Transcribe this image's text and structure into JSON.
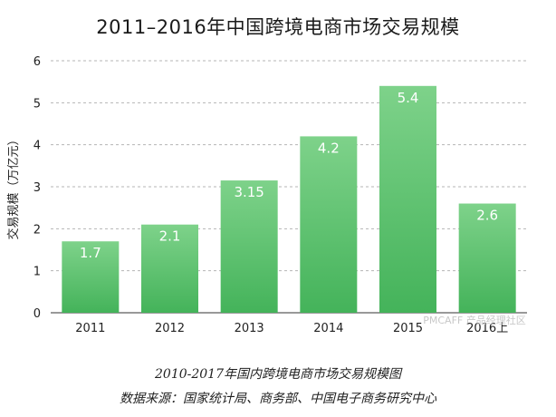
{
  "chart_data": {
    "type": "bar",
    "title": "2011–2016年中国跨境电商市场交易规模",
    "categories": [
      "2011",
      "2012",
      "2013",
      "2014",
      "2015",
      "2016上"
    ],
    "values": [
      1.7,
      2.1,
      3.15,
      4.2,
      5.4,
      2.6
    ],
    "value_labels": [
      "1.7",
      "2.1",
      "3.15",
      "4.2",
      "5.4",
      "2.6"
    ],
    "xlabel": "",
    "ylabel": "交易规模（万亿元）",
    "ylim": [
      0,
      6
    ],
    "yticks": [
      "0",
      "1",
      "2",
      "3",
      "4",
      "5",
      "6"
    ],
    "grid": true,
    "bar_color_top": "#7ed28a",
    "bar_color_bottom": "#44b35a"
  },
  "captions": {
    "line1": "2010-2017年国内跨境电商市场交易规模图",
    "line2": "数据来源：国家统计局、商务部、中国电子商务研究中心"
  },
  "watermark": "PMCAFF 产品经理社区"
}
